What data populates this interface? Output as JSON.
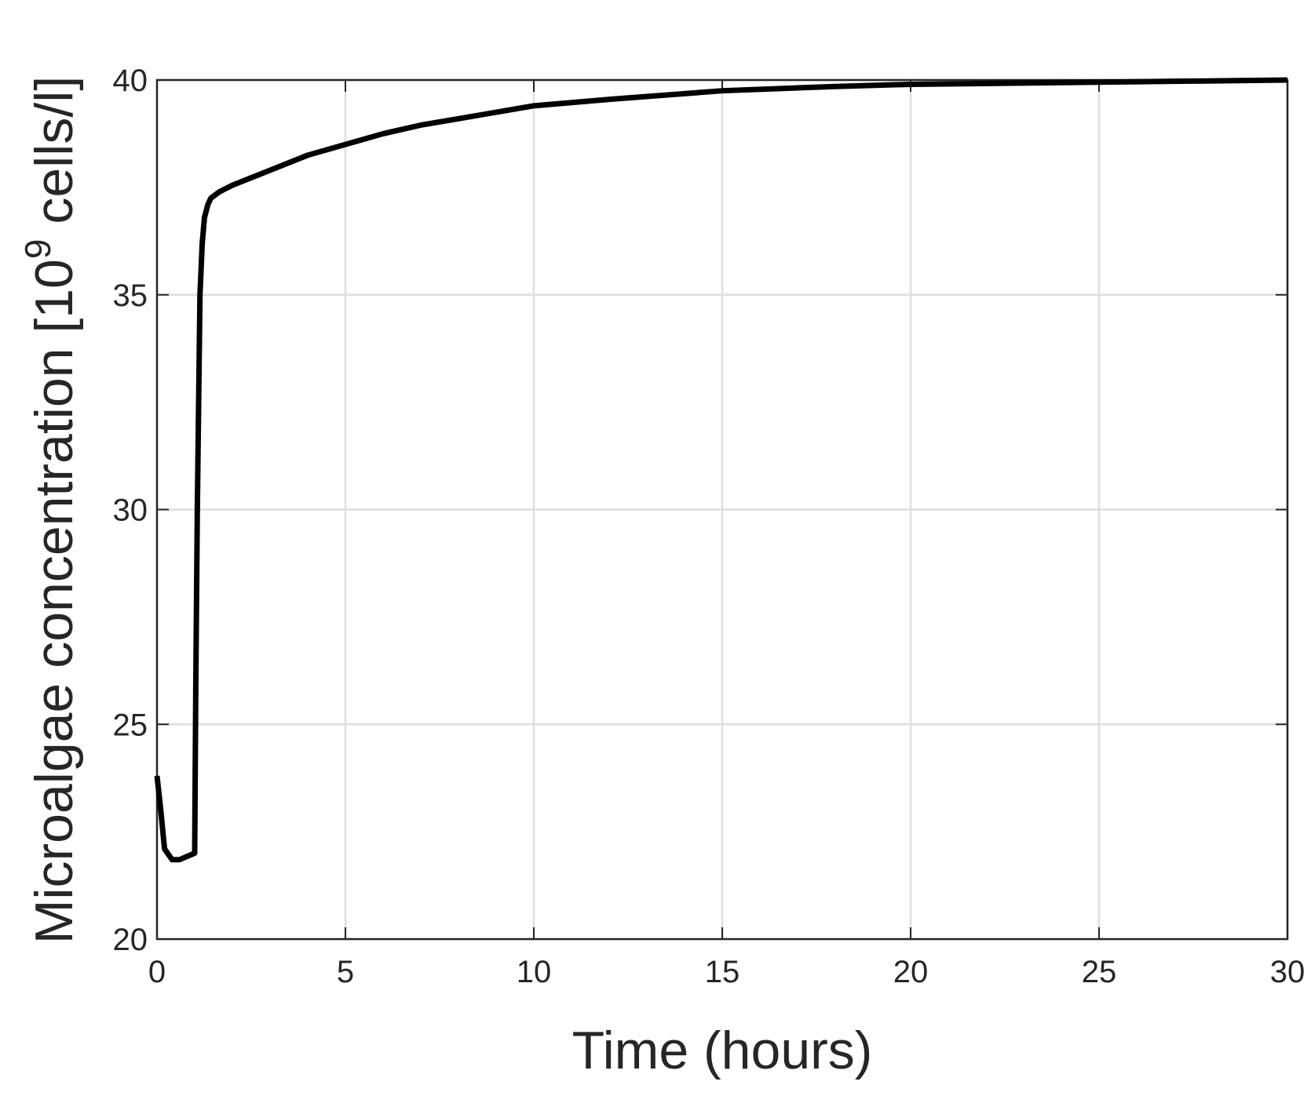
{
  "chart_data": {
    "type": "line",
    "xlabel": "Time (hours)",
    "ylabel_parts": [
      "Microalgae concentration [10",
      "9",
      " cells/l]"
    ],
    "x": [
      0,
      0.1,
      0.2,
      0.4,
      0.6,
      1.0,
      1.03,
      1.07,
      1.14,
      1.2,
      1.26,
      1.35,
      1.43,
      1.66,
      2,
      3,
      4,
      5,
      6,
      7,
      8,
      10,
      12,
      15,
      18,
      20,
      25,
      30
    ],
    "series": [
      {
        "name": "Microalgae",
        "color": "#000000",
        "values": [
          23.8,
          23.0,
          22.1,
          21.85,
          21.85,
          22.0,
          26,
          30,
          35,
          36.2,
          36.8,
          37.1,
          37.25,
          37.4,
          37.55,
          37.9,
          38.25,
          38.5,
          38.75,
          38.95,
          39.1,
          39.4,
          39.55,
          39.75,
          39.85,
          39.9,
          39.95,
          40
        ]
      }
    ],
    "xlim": [
      0,
      30
    ],
    "ylim": [
      20,
      40
    ],
    "xticks": [
      0,
      5,
      10,
      15,
      20,
      25,
      30
    ],
    "yticks": [
      20,
      25,
      30,
      35,
      40
    ],
    "grid": true
  }
}
